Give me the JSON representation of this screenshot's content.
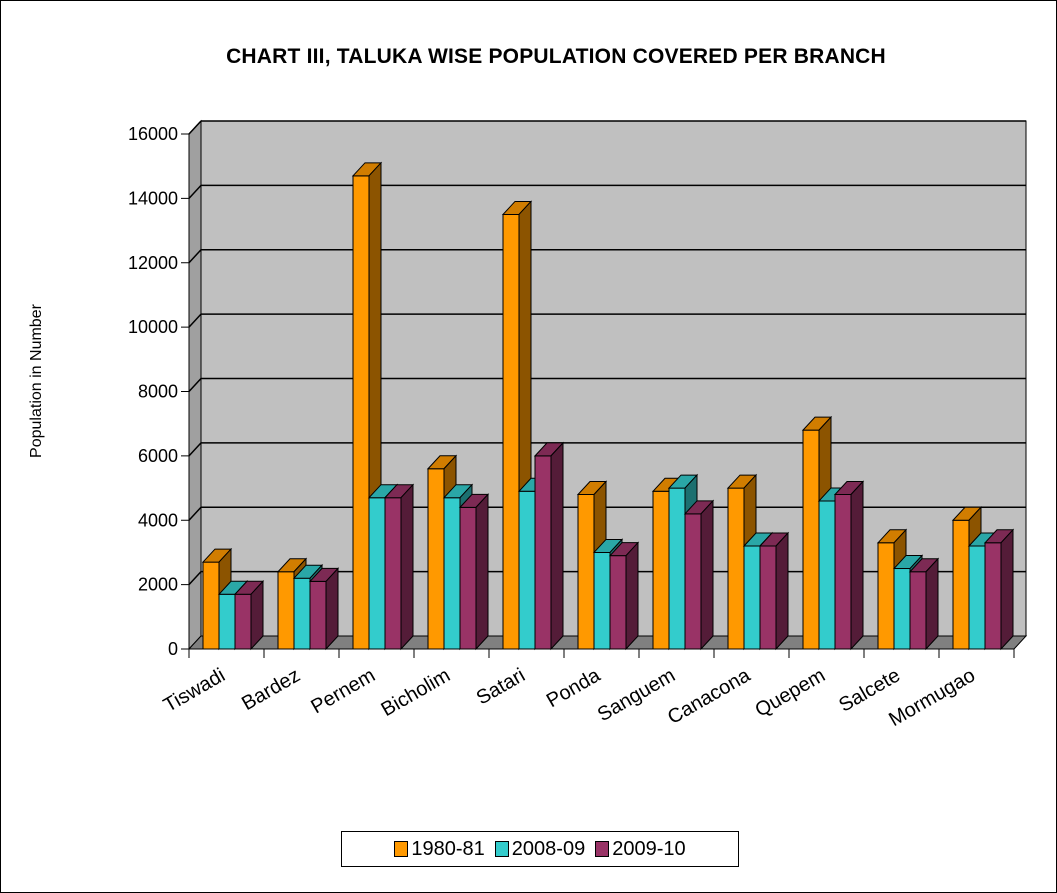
{
  "chart_data": {
    "type": "bar",
    "title": "CHART III, TALUKA WISE POPULATION COVERED PER BRANCH",
    "xlabel": "",
    "ylabel": "Population in Number",
    "categories": [
      "Tiswadi",
      "Bardez",
      "Pernem",
      "Bicholim",
      "Satari",
      "Ponda",
      "Sanguem",
      "Canacona",
      "Quepem",
      "Salcete",
      "Mormugao"
    ],
    "series": [
      {
        "name": "1980-81",
        "color": "#ff9900",
        "values": [
          2700,
          2400,
          14700,
          5600,
          13500,
          4800,
          4900,
          5000,
          6800,
          3300,
          4000
        ]
      },
      {
        "name": "2008-09",
        "color": "#33cccc",
        "values": [
          1700,
          2200,
          4700,
          4700,
          4900,
          3000,
          5000,
          3200,
          4600,
          2500,
          3200
        ]
      },
      {
        "name": "2009-10",
        "color": "#993366",
        "values": [
          1700,
          2100,
          4700,
          4400,
          6000,
          2900,
          4200,
          3200,
          4800,
          2400,
          3300
        ]
      }
    ],
    "ylim": [
      0,
      16000
    ],
    "yticks": [
      0,
      2000,
      4000,
      6000,
      8000,
      10000,
      12000,
      14000,
      16000
    ],
    "grid": true,
    "three_d": true,
    "wall_color": "#c0c0c0",
    "floor_color": "#808080",
    "legend_position": "bottom"
  }
}
